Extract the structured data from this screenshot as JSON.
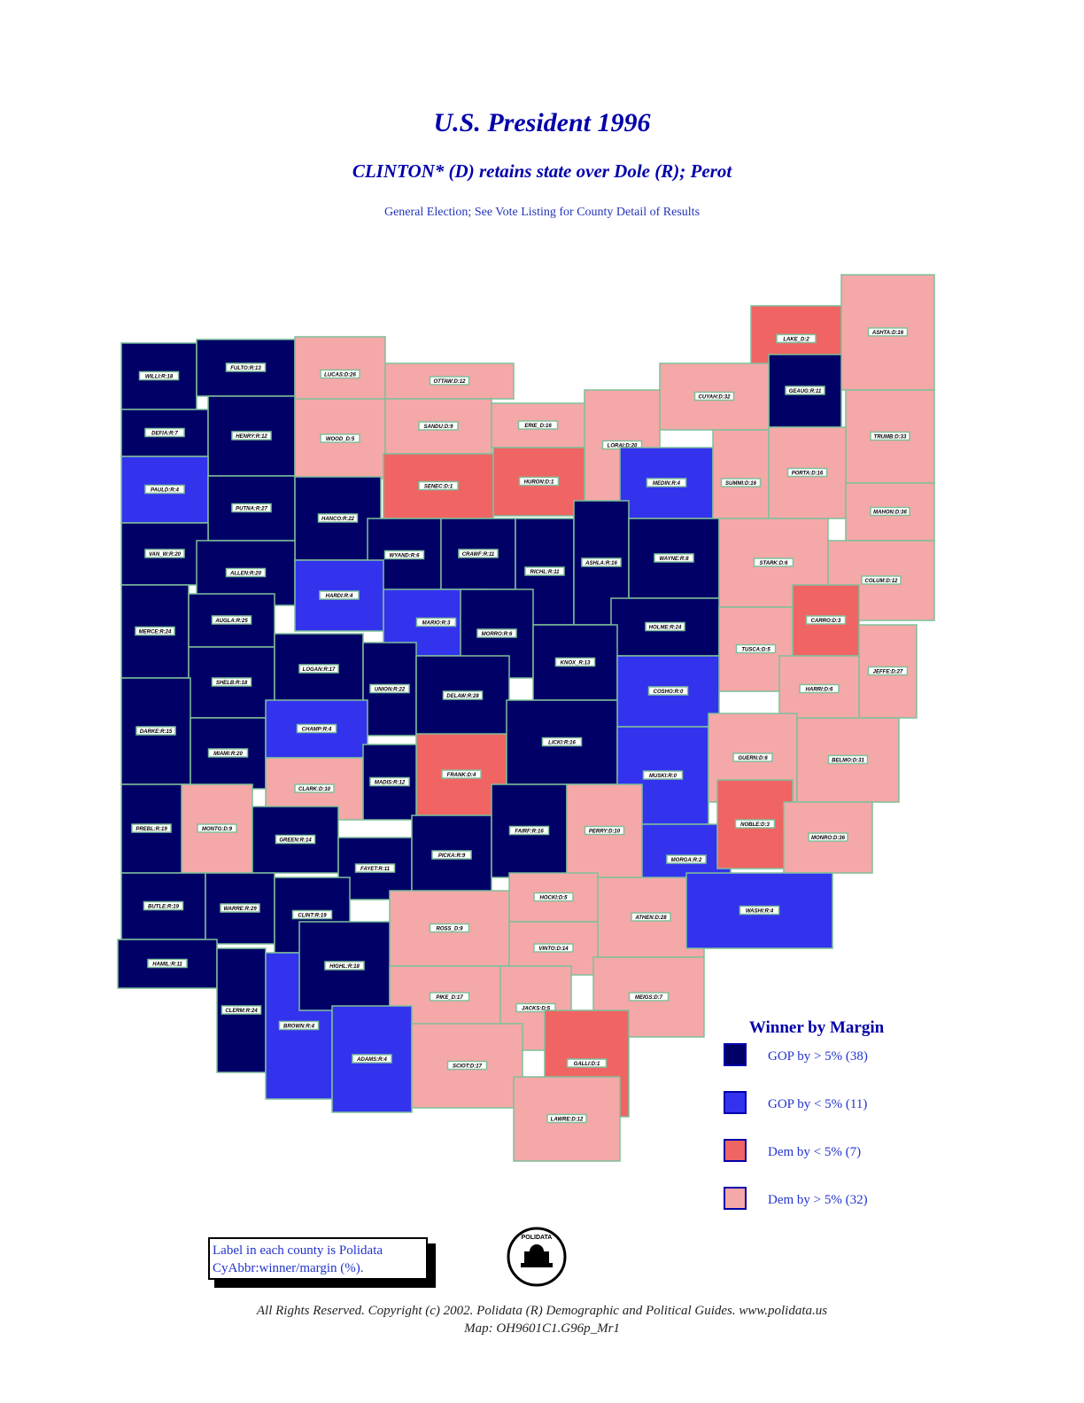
{
  "header": {
    "title": "U.S. President 1996",
    "subtitle": "CLINTON* (D) retains state over Dole (R); Perot",
    "note": "General Election; See Vote Listing for County Detail of Results"
  },
  "legend": {
    "title": "Winner by Margin",
    "items": [
      {
        "label": "GOP by > 5% (38)",
        "color": "#000066"
      },
      {
        "label": "GOP by < 5% (11)",
        "color": "#3333ee"
      },
      {
        "label": "Dem by < 5% (7)",
        "color": "#f06464"
      },
      {
        "label": "Dem by > 5% (32)",
        "color": "#f5a8a8"
      }
    ]
  },
  "counties": [
    {
      "label": "WILLI:R:18"
    },
    {
      "label": "FULTO:R:13"
    },
    {
      "label": "LUCAS:D:26"
    },
    {
      "label": "OTTAW:D:12"
    },
    {
      "label": "LAKE_D:2"
    },
    {
      "label": "ASHTA:D:16"
    },
    {
      "label": "GEAUG:R:11"
    },
    {
      "label": "DEFIA:R:7"
    },
    {
      "label": "HENRY:R:12"
    },
    {
      "label": "WOOD_D:5"
    },
    {
      "label": "SANDU:D:9"
    },
    {
      "label": "ERIE_D:16"
    },
    {
      "label": "LORAI:D:20"
    },
    {
      "label": "CUYAH:D:32"
    },
    {
      "label": "TRUMB:D:33"
    },
    {
      "label": "PAULD:R:4"
    },
    {
      "label": "PUTNA:R:27"
    },
    {
      "label": "HANCO:R:22"
    },
    {
      "label": "SENEC:D:1"
    },
    {
      "label": "HURON:D:1"
    },
    {
      "label": "MEDIN:R:4"
    },
    {
      "label": "SUMMI:D:16"
    },
    {
      "label": "PORTA:D:16"
    },
    {
      "label": "MAHON:D:36"
    },
    {
      "label": "VAN_W:R:20"
    },
    {
      "label": "ALLEN:R:20"
    },
    {
      "label": "WYAND:R:6"
    },
    {
      "label": "CRAWF:R:11"
    },
    {
      "label": "RICHL:R:11"
    },
    {
      "label": "ASHLA:R:16"
    },
    {
      "label": "WAYNE:R:8"
    },
    {
      "label": "STARK:D:6"
    },
    {
      "label": "COLUM:D:12"
    },
    {
      "label": "HARDI:R:4"
    },
    {
      "label": "MARIO:R:3"
    },
    {
      "label": "MORRO:R:6"
    },
    {
      "label": "MERCE:R:24"
    },
    {
      "label": "AUGLA:R:25"
    },
    {
      "label": "HOLME:R:24"
    },
    {
      "label": "CARRO:D:3"
    },
    {
      "label": "TUSCA:D:5"
    },
    {
      "label": "JEFFE:D:27"
    },
    {
      "label": "SHELB:R:18"
    },
    {
      "label": "LOGAN:R:17"
    },
    {
      "label": "UNION:R:22"
    },
    {
      "label": "DELAW:R:28"
    },
    {
      "label": "KNOX_R:13"
    },
    {
      "label": "COSHO:R:0"
    },
    {
      "label": "HARRI:D:6"
    },
    {
      "label": "DARKE:R:15"
    },
    {
      "label": "MIAMI:R:20"
    },
    {
      "label": "CHAMP:R:4"
    },
    {
      "label": "FRANK:D:4"
    },
    {
      "label": "LICKI:R:16"
    },
    {
      "label": "MUSKI:R:0"
    },
    {
      "label": "GUERN:D:6"
    },
    {
      "label": "BELMO:D:31"
    },
    {
      "label": "CLARK:D:10"
    },
    {
      "label": "MADIS:R:12"
    },
    {
      "label": "MONTG:D:9"
    },
    {
      "label": "PREBL:R:19"
    },
    {
      "label": "GREEN:R:14"
    },
    {
      "label": "FAYET:R:11"
    },
    {
      "label": "PICKA:R:9"
    },
    {
      "label": "FAIRF:R:16"
    },
    {
      "label": "PERRY:D:10"
    },
    {
      "label": "MORGA:R:2"
    },
    {
      "label": "NOBLE:D:3"
    },
    {
      "label": "MONRO:D:36"
    },
    {
      "label": "BUTLE:R:19"
    },
    {
      "label": "WARRE:R:29"
    },
    {
      "label": "CLINT:R:19"
    },
    {
      "label": "ROSS_D:9"
    },
    {
      "label": "HOCKI:D:5"
    },
    {
      "label": "ATHEN:D:28"
    },
    {
      "label": "WASHI:R:4"
    },
    {
      "label": "HAMIL:R:11"
    },
    {
      "label": "CLERM:R:24"
    },
    {
      "label": "BROWN:R:4"
    },
    {
      "label": "HIGHL:R:18"
    },
    {
      "label": "VINTO:D:14"
    },
    {
      "label": "PIKE_D:17"
    },
    {
      "label": "MEIGS:D:7"
    },
    {
      "label": "JACKS:D:5"
    },
    {
      "label": "ADAMS:R:4"
    },
    {
      "label": "SCIOT:D:17"
    },
    {
      "label": "GALLI:D:1"
    },
    {
      "label": "LAWRE:D:12"
    }
  ],
  "label_note": {
    "lines": [
      "Label in each county is Polidata",
      "CyAbbr:winner/margin (%)."
    ]
  },
  "logo": "POLIDATA",
  "footer": {
    "lines": [
      "All Rights Reserved. Copyright (c) 2002. Polidata (R) Demographic and Political Guides. www.polidata.us",
      "Map: OH9601C1.G96p_Mr1"
    ]
  }
}
